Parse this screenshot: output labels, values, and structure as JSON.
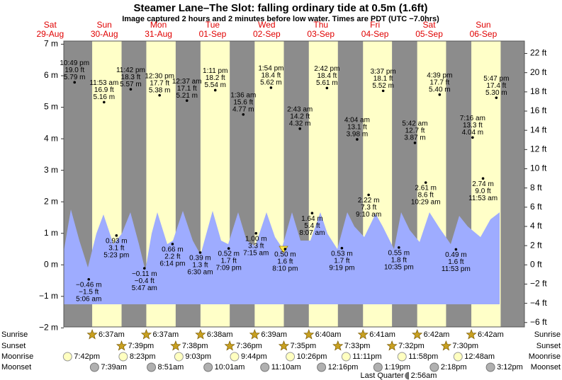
{
  "chart_data": {
    "type": "tide",
    "title": "Steamer Lane–The Slot: falling  ordinary tide at 0.5m (1.6ft)",
    "subtitle": "Image captured 2 hours and 2 minutes before low water. Times are PDT (UTC −7.0hrs)",
    "row_labels": [
      "Sunrise",
      "Sunset",
      "Moonrise",
      "Moonset"
    ],
    "ylim": [
      -1.97,
      7.1
    ],
    "yticks": [
      {
        "value": 7,
        "label": "7 m"
      },
      {
        "value": 6,
        "label": "6 m"
      },
      {
        "value": 5,
        "label": "5 m"
      },
      {
        "value": 4,
        "label": "4 m"
      },
      {
        "value": 3,
        "label": "3 m"
      },
      {
        "value": 2,
        "label": "2 m"
      },
      {
        "value": 1,
        "label": "1 m"
      },
      {
        "value": 0,
        "label": "0 m"
      },
      {
        "value": -1,
        "label": "−1 m"
      },
      {
        "value": -2,
        "label": "−2 m"
      }
    ],
    "y2lim": [
      -6.46,
      23.29
    ],
    "y2ticks": [
      {
        "value": 22,
        "label": "22 ft"
      },
      {
        "value": 20,
        "label": "20 ft"
      },
      {
        "value": 18,
        "label": "18 ft"
      },
      {
        "value": 16,
        "label": "16 ft"
      },
      {
        "value": 14,
        "label": "14 ft"
      },
      {
        "value": 12,
        "label": "12 ft"
      },
      {
        "value": 10,
        "label": "10 ft"
      },
      {
        "value": 8,
        "label": "8 ft"
      },
      {
        "value": 6,
        "label": "6 ft"
      },
      {
        "value": 4,
        "label": "4 ft"
      },
      {
        "value": 2,
        "label": "2 ft"
      },
      {
        "value": 0,
        "label": "0 ft"
      },
      {
        "value": -2,
        "label": "−2 ft"
      },
      {
        "value": -4,
        "label": "−4 ft"
      },
      {
        "value": -6,
        "label": "−6 ft"
      }
    ],
    "days": [
      {
        "weekday": "Sat",
        "date": "29-Aug",
        "moonrise": "7:42pm",
        "tides": [
          {
            "time": "10:49 pm",
            "value": 5.79,
            "value_label": "5.79 m",
            "feet_label": "19.0 ft"
          }
        ]
      },
      {
        "weekday": "Sun",
        "date": "30-Aug",
        "sunrise": "6:37am",
        "sunset": "7:39pm",
        "moonrise": "8:23pm",
        "moonset": "7:39am",
        "tides": [
          {
            "time": "5:06 am",
            "value": -0.46,
            "value_label": "−0.46 m",
            "feet_label": "−1.5 ft"
          },
          {
            "time": "11:53 am",
            "value": 5.16,
            "value_label": "5.16 m",
            "feet_label": "16.9 ft"
          },
          {
            "time": "5:23 pm",
            "value": 0.93,
            "value_label": "0.93 m",
            "feet_label": "3.1 ft"
          },
          {
            "time": "11:42 pm",
            "value": 5.57,
            "value_label": "5.57 m",
            "feet_label": "18.3 ft"
          }
        ]
      },
      {
        "weekday": "Mon",
        "date": "31-Aug",
        "sunrise": "6:37am",
        "sunset": "7:38pm",
        "moonrise": "9:03pm",
        "moonset": "8:51am",
        "tides": [
          {
            "time": "5:47 am",
            "value": -0.11,
            "value_label": "−0.11 m",
            "feet_label": "−0.4 ft"
          },
          {
            "time": "12:30 pm",
            "value": 5.38,
            "value_label": "5.38 m",
            "feet_label": "17.7 ft"
          },
          {
            "time": "6:14 pm",
            "value": 0.66,
            "value_label": "0.66 m",
            "feet_label": "2.2 ft"
          }
        ]
      },
      {
        "weekday": "Tue",
        "date": "01-Sep",
        "sunrise": "6:38am",
        "sunset": "7:36pm",
        "moonrise": "9:44pm",
        "moonset": "10:01am",
        "tides": [
          {
            "time": "12:37 am",
            "value": 5.21,
            "value_label": "5.21 m",
            "feet_label": "17.1 ft"
          },
          {
            "time": "6:30 am",
            "value": 0.39,
            "value_label": "0.39 m",
            "feet_label": "1.3 ft"
          },
          {
            "time": "1:11 pm",
            "value": 5.54,
            "value_label": "5.54 m",
            "feet_label": "18.2 ft"
          },
          {
            "time": "7:09 pm",
            "value": 0.52,
            "value_label": "0.52 m",
            "feet_label": "1.7 ft"
          }
        ]
      },
      {
        "weekday": "Wed",
        "date": "02-Sep",
        "sunrise": "6:39am",
        "sunset": "7:35pm",
        "moonrise": "10:26pm",
        "moonset": "11:10am",
        "tides": [
          {
            "time": "1:36 am",
            "value": 4.77,
            "value_label": "4.77 m",
            "feet_label": "15.6 ft"
          },
          {
            "time": "7:15 am",
            "value": 1.0,
            "value_label": "1.00 m",
            "feet_label": "3.3 ft"
          },
          {
            "time": "1:54 pm",
            "value": 5.62,
            "value_label": "5.62 m",
            "feet_label": "18.4 ft"
          },
          {
            "time": "8:10 pm",
            "value": 0.5,
            "value_label": "0.50 m",
            "feet_label": "1.6 ft"
          }
        ]
      },
      {
        "weekday": "Thu",
        "date": "03-Sep",
        "sunrise": "6:40am",
        "sunset": "7:33pm",
        "moonrise": "11:11pm",
        "moonset": "12:16pm",
        "tides": [
          {
            "time": "2:43 am",
            "value": 4.32,
            "value_label": "4.32 m",
            "feet_label": "14.2 ft"
          },
          {
            "time": "8:07 am",
            "value": 1.64,
            "value_label": "1.64 m",
            "feet_label": "5.4 ft"
          },
          {
            "time": "2:42 pm",
            "value": 5.61,
            "value_label": "5.61 m",
            "feet_label": "18.4 ft"
          },
          {
            "time": "9:19 pm",
            "value": 0.53,
            "value_label": "0.53 m",
            "feet_label": "1.7 ft"
          }
        ]
      },
      {
        "weekday": "Fri",
        "date": "04-Sep",
        "sunrise": "6:41am",
        "sunset": "7:32pm",
        "moonrise": "11:58pm",
        "moonset": "1:19pm",
        "tides": [
          {
            "time": "4:04 am",
            "value": 3.98,
            "value_label": "3.98 m",
            "feet_label": "13.1 ft"
          },
          {
            "time": "9:10 am",
            "value": 2.22,
            "value_label": "2.22 m",
            "feet_label": "7.3 ft"
          },
          {
            "time": "3:37 pm",
            "value": 5.52,
            "value_label": "5.52 m",
            "feet_label": "18.1 ft"
          },
          {
            "time": "10:35 pm",
            "value": 0.55,
            "value_label": "0.55 m",
            "feet_label": "1.8 ft"
          }
        ]
      },
      {
        "weekday": "Sat",
        "date": "05-Sep",
        "sunrise": "6:42am",
        "sunset": "7:30pm",
        "moonset": "2:18pm",
        "moon_phase": {
          "name": "Last Quarter",
          "time": "2:56am"
        },
        "tides": [
          {
            "time": "5:42 am",
            "value": 3.87,
            "value_label": "3.87 m",
            "feet_label": "12.7 ft"
          },
          {
            "time": "10:29 am",
            "value": 2.61,
            "value_label": "2.61 m",
            "feet_label": "8.6 ft"
          },
          {
            "time": "4:39 pm",
            "value": 5.4,
            "value_label": "5.40 m",
            "feet_label": "17.7 ft"
          },
          {
            "time": "11:53 pm",
            "value": 0.49,
            "value_label": "0.49 m",
            "feet_label": "1.6 ft"
          }
        ]
      },
      {
        "weekday": "Sun",
        "date": "06-Sep",
        "sunrise": "6:42am",
        "moonrise": "12:48am",
        "moonset": "3:12pm",
        "tides": [
          {
            "time": "7:16 am",
            "value": 4.04,
            "value_label": "4.04 m",
            "feet_label": "13.3 ft"
          },
          {
            "time": "11:53 am",
            "value": 2.74,
            "value_label": "2.74 m",
            "feet_label": "9.0 ft"
          },
          {
            "time": "5:47 pm",
            "value": 5.3,
            "value_label": "5.30 m",
            "feet_label": "17.4 ft"
          }
        ]
      }
    ]
  }
}
